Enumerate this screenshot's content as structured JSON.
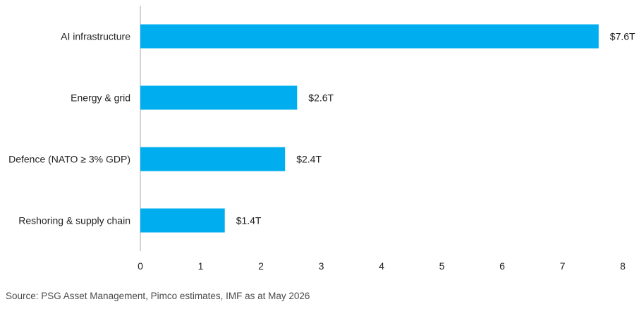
{
  "chart_data": {
    "type": "bar",
    "orientation": "horizontal",
    "categories": [
      "AI infrastructure",
      "Energy & grid",
      "Defence (NATO ≥ 3% GDP)",
      "Reshoring & supply chain"
    ],
    "values": [
      7.6,
      2.6,
      2.4,
      1.4
    ],
    "value_labels": [
      "$7.6T",
      "$2.6T",
      "$2.4T",
      "$1.4T"
    ],
    "title": "",
    "xlabel": "",
    "ylabel": "",
    "xlim": [
      0,
      8
    ],
    "x_ticks": [
      0,
      1,
      2,
      3,
      4,
      5,
      6,
      7,
      8
    ],
    "grid": false,
    "bar_color": "#00aeef"
  },
  "source": "Source: PSG Asset Management, Pimco estimates, IMF as at May 2026",
  "colors": {
    "bar": "#00aeef",
    "axis": "#aaaaaa",
    "text": "#222222",
    "source_text": "#4a4a4a"
  }
}
